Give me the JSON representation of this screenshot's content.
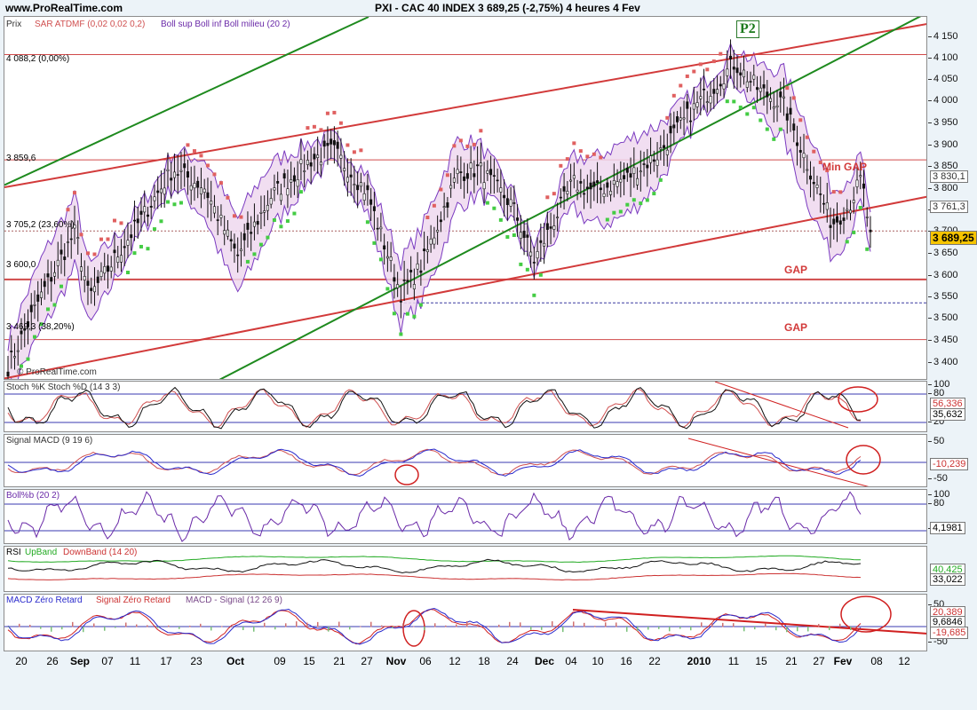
{
  "header": {
    "site": "www.ProRealTime.com",
    "title": "PXI - CAC 40 INDEX     3 689,25 (-2,75%)     4 heures  4 Fev"
  },
  "main_panel": {
    "prefix": "Prix",
    "legend_sar": "SAR ATDMF (0,02 0,02 0,2)",
    "legend_boll": "Boll sup Boll inf Boll milieu (20 2)",
    "watermark": "© ProRealTime.com",
    "label_p2": "P2",
    "label_min_gap": "Min GAP",
    "label_gap1": "GAP",
    "label_gap2": "GAP",
    "fib_0": "4 088,2 (0,00%)",
    "fib_high": "3 859,6",
    "fib_236": "3 705,2 (23,60%)",
    "fib_mid": "3 600,0",
    "fib_382": "3 469,3 (38,20%)",
    "price_tag_1": "3 830,1",
    "price_tag_2": "3 761,3",
    "price_tag_last": "3 689,25",
    "y_ticks": [
      "4 150",
      "4 100",
      "4 050",
      "4 000",
      "3 950",
      "3 900",
      "3 850",
      "3 800",
      "3 750",
      "3 700",
      "3 650",
      "3 600",
      "3 550",
      "3 500",
      "3 450",
      "3 400"
    ]
  },
  "stoch_panel": {
    "legend": "Stoch %K Stoch %D (14 3 3)",
    "y_ticks": [
      "100",
      "80",
      "20"
    ],
    "tag_1": "56,336",
    "tag_2": "35,632"
  },
  "macd_panel": {
    "legend": "Signal MACD (9 19 6)",
    "y_ticks": [
      "50",
      "-50"
    ],
    "tag_1": "-10,239"
  },
  "boll_panel": {
    "legend": "Boll%b (20 2)",
    "y_ticks": [
      "100",
      "80",
      "20"
    ],
    "tag_1": "4,1981"
  },
  "rsi_panel": {
    "legend_rsi": "RSI",
    "legend_up": "UpBand",
    "legend_down": "DownBand (14 20)",
    "tag_1": "40,425",
    "tag_2": "33,022"
  },
  "macdz_panel": {
    "legend_a": "MACD Zéro Retard",
    "legend_b": "Signal Zéro Retard",
    "legend_c": "MACD - Signal (12 26 9)",
    "y_ticks": [
      "50",
      "-50"
    ],
    "tag_1": "20,389",
    "tag_2": "9,6846",
    "tag_3": "-19,685"
  },
  "x_axis": [
    "20",
    "26",
    "Sep",
    "07",
    "11",
    "17",
    "23",
    "Oct",
    "09",
    "15",
    "21",
    "27",
    "Nov",
    "06",
    "12",
    "18",
    "24",
    "Dec",
    "04",
    "10",
    "16",
    "22",
    "2010",
    "11",
    "15",
    "21",
    "27",
    "Fev",
    "08",
    "12"
  ],
  "chart_data": {
    "type": "candlestick",
    "title": "PXI - CAC 40 INDEX",
    "interval": "4 heures",
    "last": 3689.25,
    "change_pct": -2.75,
    "ylim": [
      3380,
      4170
    ],
    "date_labels": [
      "20",
      "26",
      "Sep",
      "07",
      "11",
      "17",
      "23",
      "Oct",
      "09",
      "15",
      "21",
      "27",
      "Nov",
      "06",
      "12",
      "18",
      "24",
      "Dec",
      "04",
      "10",
      "16",
      "22",
      "2010",
      "11",
      "15",
      "21",
      "27",
      "Fev",
      "08",
      "12"
    ],
    "close_path": [
      {
        "date": "Aug 18",
        "close": 3410
      },
      {
        "date": "Aug 24",
        "close": 3560
      },
      {
        "date": "Aug 28",
        "close": 3705
      },
      {
        "date": "Sep 03",
        "close": 3560
      },
      {
        "date": "Sep 11",
        "close": 3720
      },
      {
        "date": "Sep 17",
        "close": 3840
      },
      {
        "date": "Sep 23",
        "close": 3800
      },
      {
        "date": "Oct 02",
        "close": 3650
      },
      {
        "date": "Oct 09",
        "close": 3780
      },
      {
        "date": "Oct 15",
        "close": 3860
      },
      {
        "date": "Oct 21",
        "close": 3880
      },
      {
        "date": "Oct 27",
        "close": 3790
      },
      {
        "date": "Nov 02",
        "close": 3570
      },
      {
        "date": "Nov 06",
        "close": 3630
      },
      {
        "date": "Nov 12",
        "close": 3830
      },
      {
        "date": "Nov 18",
        "close": 3840
      },
      {
        "date": "Nov 24",
        "close": 3760
      },
      {
        "date": "Nov 30",
        "close": 3640
      },
      {
        "date": "Dec 04",
        "close": 3810
      },
      {
        "date": "Dec 10",
        "close": 3790
      },
      {
        "date": "Dec 16",
        "close": 3820
      },
      {
        "date": "Dec 22",
        "close": 3870
      },
      {
        "date": "Jan 04",
        "close": 3980
      },
      {
        "date": "Jan 11",
        "close": 4070
      },
      {
        "date": "Jan 15",
        "close": 4010
      },
      {
        "date": "Jan 19",
        "close": 3980
      },
      {
        "date": "Jan 22",
        "close": 3860
      },
      {
        "date": "Jan 27",
        "close": 3720
      },
      {
        "date": "Feb 01",
        "close": 3760
      },
      {
        "date": "Feb 03",
        "close": 3820
      },
      {
        "date": "Feb 04",
        "close": 3689
      }
    ],
    "horizontal_levels": [
      4088.2,
      3859.6,
      3705.2,
      3600,
      3469.3
    ]
  }
}
